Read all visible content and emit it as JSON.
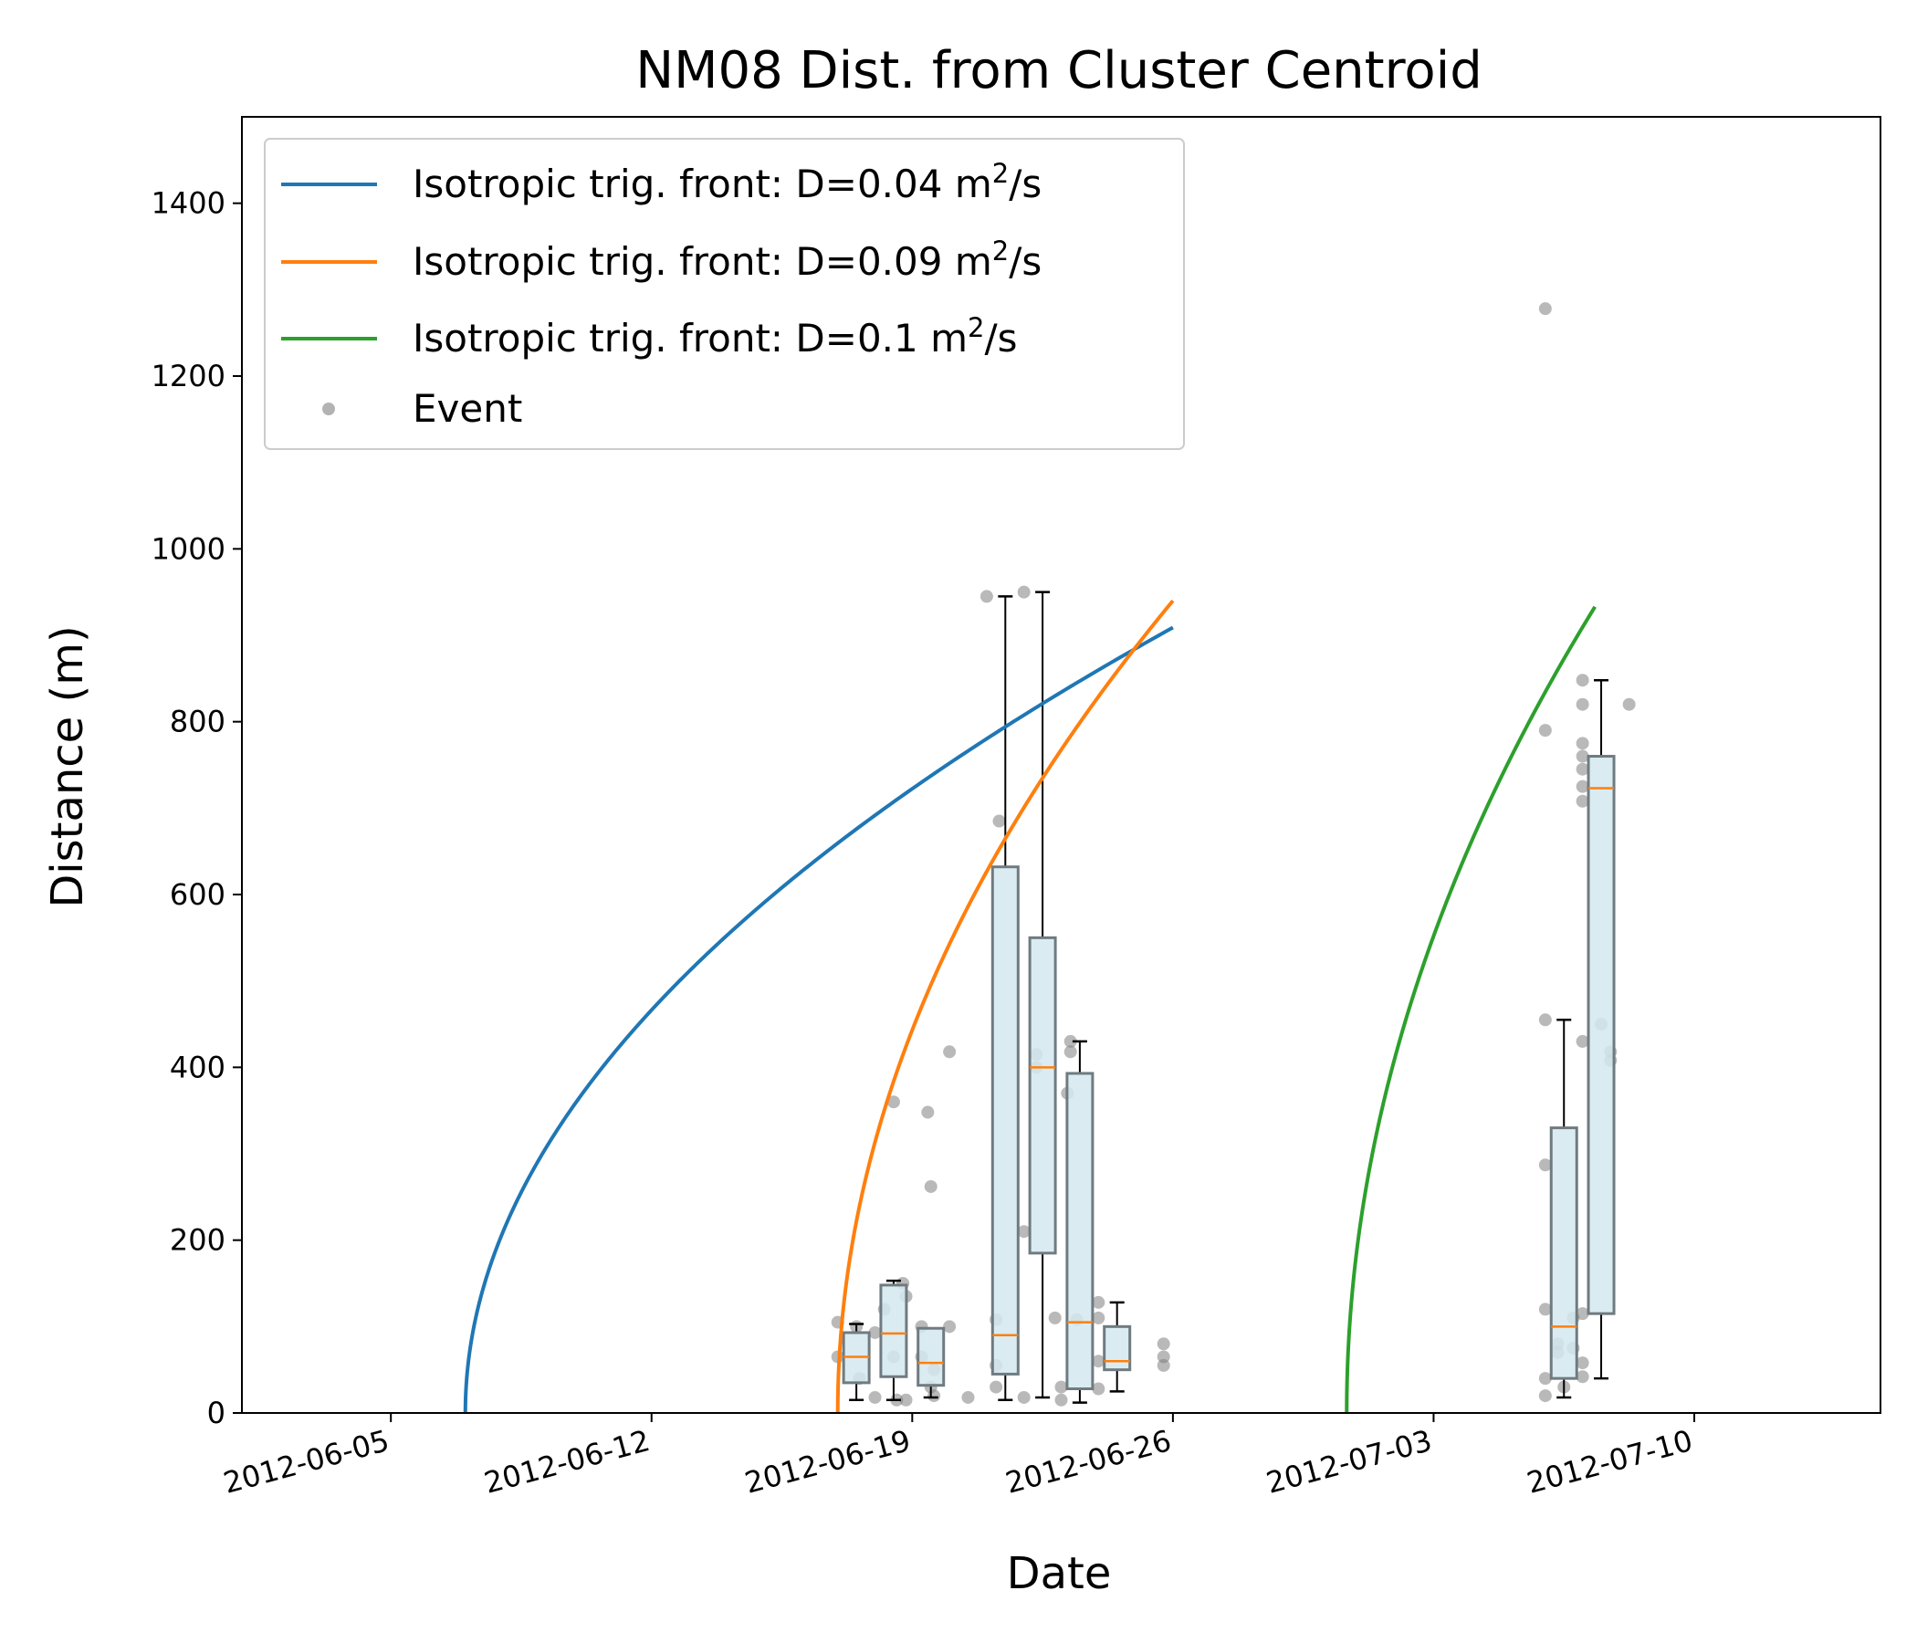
{
  "chart_data": {
    "type": "line",
    "title": "NM08 Dist. from Cluster Centroid",
    "xlabel": "Date",
    "ylabel": "Distance (m)",
    "xlim": [
      "2012-06-01",
      "2012-07-15"
    ],
    "ylim": [
      0,
      1500
    ],
    "yticks": [
      0,
      200,
      400,
      600,
      800,
      1000,
      1200,
      1400
    ],
    "xticks": [
      "2012-06-05",
      "2012-06-12",
      "2012-06-19",
      "2012-06-26",
      "2012-07-03",
      "2012-07-10"
    ],
    "grid": false,
    "legend_position": "top-left",
    "series": [
      {
        "name": "Isotropic trig. front: D=0.04 m²/s",
        "legend_label": "Isotropic trig. front: D=0.04 m",
        "legend_sup": "2",
        "legend_tail": "/s",
        "color": "#1f77b4",
        "start": "2012-06-07T00:00",
        "end": "2012-06-26T00:00",
        "points": [
          [
            "2012-06-07T00:00",
            0
          ],
          [
            "2012-06-07T01:00",
            65
          ],
          [
            "2012-06-08T00:00",
            209
          ],
          [
            "2012-06-10T00:00",
            361
          ],
          [
            "2012-06-14T00:00",
            554
          ],
          [
            "2012-06-18T00:00",
            696
          ],
          [
            "2012-06-22T00:00",
            813
          ],
          [
            "2012-06-26T00:00",
            909
          ]
        ]
      },
      {
        "name": "Isotropic trig. front: D=0.09 m²/s",
        "legend_label": "Isotropic trig. front: D=0.09 m",
        "legend_sup": "2",
        "legend_tail": "/s",
        "color": "#ff7f0e",
        "start": "2012-06-17T00:00",
        "end": "2012-06-26T00:00",
        "points": [
          [
            "2012-06-17T00:00",
            0
          ],
          [
            "2012-06-17T01:00",
            98
          ],
          [
            "2012-06-18T00:00",
            313
          ],
          [
            "2012-06-20T00:00",
            627
          ],
          [
            "2012-06-22T00:00",
            767
          ],
          [
            "2012-06-24T00:00",
            860
          ],
          [
            "2012-06-26T00:00",
            940
          ]
        ]
      },
      {
        "name": "Isotropic trig. front: D=0.1 m²/s",
        "legend_label": "Isotropic trig. front: D=0.1 m",
        "legend_sup": "2",
        "legend_tail": "/s",
        "color": "#2ca02c",
        "start": "2012-06-30T16:00",
        "end": "2012-07-07T08:00",
        "points": [
          [
            "2012-06-30T16:00",
            0
          ],
          [
            "2012-06-30T17:00",
            104
          ],
          [
            "2012-07-01T16:00",
            360
          ],
          [
            "2012-07-03T16:00",
            620
          ],
          [
            "2012-07-05T16:00",
            800
          ],
          [
            "2012-07-07T08:00",
            933
          ]
        ]
      }
    ],
    "events": {
      "name": "Event",
      "color": "#808080",
      "points": [
        [
          "2012-06-17T00:00",
          105
        ],
        [
          "2012-06-17T00:00",
          65
        ],
        [
          "2012-06-17T12:00",
          100
        ],
        [
          "2012-06-17T14:00",
          40
        ],
        [
          "2012-06-18T00:00",
          93
        ],
        [
          "2012-06-18T00:00",
          18
        ],
        [
          "2012-06-18T06:00",
          120
        ],
        [
          "2012-06-18T12:00",
          360
        ],
        [
          "2012-06-18T12:00",
          65
        ],
        [
          "2012-06-18T14:00",
          15
        ],
        [
          "2012-06-18T18:00",
          150
        ],
        [
          "2012-06-18T20:00",
          135
        ],
        [
          "2012-06-18T20:00",
          15
        ],
        [
          "2012-06-19T06:00",
          100
        ],
        [
          "2012-06-19T06:00",
          65
        ],
        [
          "2012-06-19T10:00",
          348
        ],
        [
          "2012-06-19T12:00",
          262
        ],
        [
          "2012-06-19T12:00",
          30
        ],
        [
          "2012-06-19T14:00",
          20
        ],
        [
          "2012-06-19T14:00",
          50
        ],
        [
          "2012-06-20T00:00",
          418
        ],
        [
          "2012-06-20T00:00",
          100
        ],
        [
          "2012-06-20T12:00",
          18
        ],
        [
          "2012-06-21T00:00",
          945
        ],
        [
          "2012-06-21T06:00",
          108
        ],
        [
          "2012-06-21T06:00",
          55
        ],
        [
          "2012-06-21T06:00",
          30
        ],
        [
          "2012-06-21T08:00",
          685
        ],
        [
          "2012-06-22T00:00",
          950
        ],
        [
          "2012-06-22T00:00",
          210
        ],
        [
          "2012-06-22T00:00",
          18
        ],
        [
          "2012-06-22T08:00",
          400
        ],
        [
          "2012-06-22T08:00",
          415
        ],
        [
          "2012-06-22T20:00",
          110
        ],
        [
          "2012-06-23T06:00",
          430
        ],
        [
          "2012-06-23T06:00",
          418
        ],
        [
          "2012-06-23T04:00",
          370
        ],
        [
          "2012-06-23T00:00",
          30
        ],
        [
          "2012-06-23T00:00",
          15
        ],
        [
          "2012-06-23T10:00",
          108
        ],
        [
          "2012-06-24T00:00",
          128
        ],
        [
          "2012-06-24T00:00",
          110
        ],
        [
          "2012-06-24T00:00",
          60
        ],
        [
          "2012-06-24T00:00",
          28
        ],
        [
          "2012-06-25T18:00",
          80
        ],
        [
          "2012-06-25T18:00",
          65
        ],
        [
          "2012-06-25T18:00",
          55
        ],
        [
          "2012-07-06T00:00",
          1278
        ],
        [
          "2012-07-06T00:00",
          790
        ],
        [
          "2012-07-06T00:00",
          455
        ],
        [
          "2012-07-06T00:00",
          287
        ],
        [
          "2012-07-06T00:00",
          120
        ],
        [
          "2012-07-06T00:00",
          40
        ],
        [
          "2012-07-06T00:00",
          20
        ],
        [
          "2012-07-06T08:00",
          80
        ],
        [
          "2012-07-06T08:00",
          70
        ],
        [
          "2012-07-06T12:00",
          30
        ],
        [
          "2012-07-06T18:00",
          110
        ],
        [
          "2012-07-06T18:00",
          75
        ],
        [
          "2012-07-07T00:00",
          848
        ],
        [
          "2012-07-07T00:00",
          820
        ],
        [
          "2012-07-07T00:00",
          775
        ],
        [
          "2012-07-07T00:00",
          760
        ],
        [
          "2012-07-07T00:00",
          745
        ],
        [
          "2012-07-07T00:00",
          725
        ],
        [
          "2012-07-07T00:00",
          708
        ],
        [
          "2012-07-07T00:00",
          430
        ],
        [
          "2012-07-07T00:00",
          115
        ],
        [
          "2012-07-07T00:00",
          58
        ],
        [
          "2012-07-07T00:00",
          42
        ],
        [
          "2012-07-07T12:00",
          450
        ],
        [
          "2012-07-07T18:00",
          418
        ],
        [
          "2012-07-07T18:00",
          408
        ],
        [
          "2012-07-08T06:00",
          820
        ]
      ]
    },
    "boxplots": {
      "fill": "#d4e9ef",
      "edge": "#6f7b80",
      "median_color": "#ff7f0e",
      "boxes": [
        {
          "date": "2012-06-17T12:00",
          "whislo": 15,
          "q1": 35,
          "med": 65,
          "q3": 93,
          "whishi": 103
        },
        {
          "date": "2012-06-18T12:00",
          "whislo": 15,
          "q1": 42,
          "med": 92,
          "q3": 148,
          "whishi": 153
        },
        {
          "date": "2012-06-19T12:00",
          "whislo": 18,
          "q1": 32,
          "med": 58,
          "q3": 98,
          "whishi": 98
        },
        {
          "date": "2012-06-21T12:00",
          "whislo": 15,
          "q1": 45,
          "med": 90,
          "q3": 632,
          "whishi": 945
        },
        {
          "date": "2012-06-22T12:00",
          "whislo": 18,
          "q1": 185,
          "med": 400,
          "q3": 550,
          "whishi": 950
        },
        {
          "date": "2012-06-23T12:00",
          "whislo": 12,
          "q1": 28,
          "med": 105,
          "q3": 393,
          "whishi": 430
        },
        {
          "date": "2012-06-24T12:00",
          "whislo": 25,
          "q1": 50,
          "med": 60,
          "q3": 100,
          "whishi": 128
        },
        {
          "date": "2012-07-06T12:00",
          "whislo": 18,
          "q1": 40,
          "med": 100,
          "q3": 330,
          "whishi": 455
        },
        {
          "date": "2012-07-07T12:00",
          "whislo": 40,
          "q1": 115,
          "med": 723,
          "q3": 760,
          "whishi": 848
        }
      ]
    }
  }
}
